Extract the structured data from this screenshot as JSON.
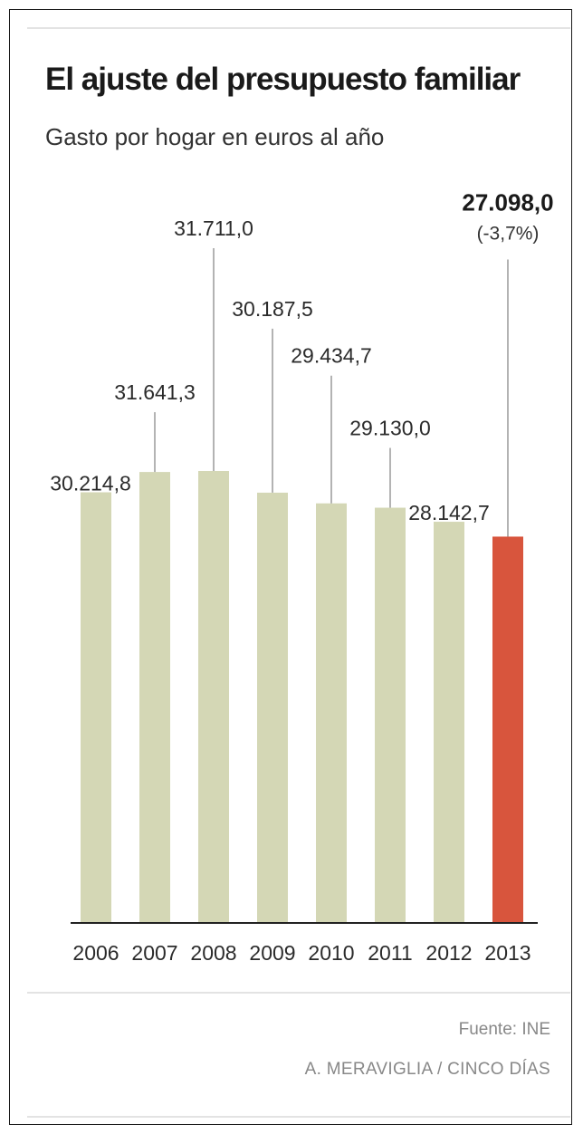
{
  "chart_data": {
    "type": "bar",
    "title": "El ajuste del presupuesto familiar",
    "subtitle": "Gasto por hogar en euros al año",
    "categories": [
      "2006",
      "2007",
      "2008",
      "2009",
      "2010",
      "2011",
      "2012",
      "2013"
    ],
    "values": [
      30214.8,
      31641.3,
      31711.0,
      30187.5,
      29434.7,
      29130.0,
      28142.7,
      27098.0
    ],
    "value_labels": [
      "30.214,8",
      "31.641,3",
      "31.711,0",
      "30.187,5",
      "29.434,7",
      "29.130,0",
      "28.142,7",
      "27.098,0"
    ],
    "highlight_index": 7,
    "highlight_note": "(-3,7%)",
    "xlabel": "",
    "ylabel": "",
    "grid": false,
    "legend": "none",
    "colors": {
      "bar": "#d4d7b5",
      "highlight": "#d8553d",
      "leader": "#9a9a9a",
      "axis": "#222222"
    }
  },
  "footer": {
    "source": "Fuente: INE",
    "credit": "A. MERAVIGLIA / CINCO DÍAS"
  }
}
